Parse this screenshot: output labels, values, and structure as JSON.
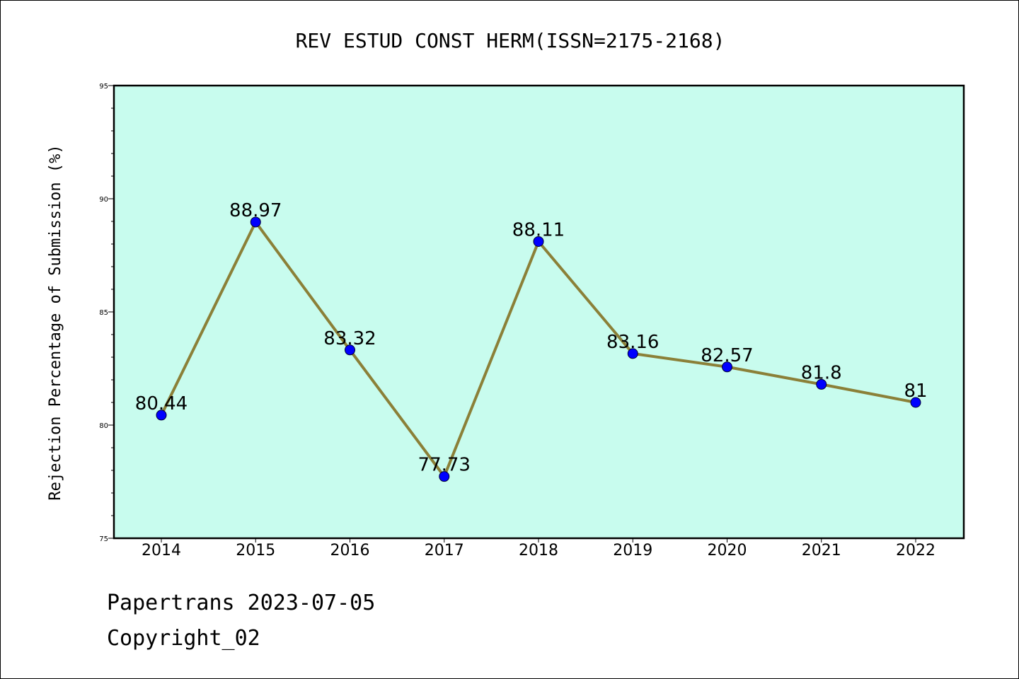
{
  "footer": {
    "line1": "Papertrans 2023-07-05",
    "line2": "Copyright_02"
  },
  "chart_data": {
    "type": "line",
    "title": "REV ESTUD CONST HERM(ISSN=2175-2168)",
    "xlabel": "",
    "ylabel": "Rejection Percentage of Submission (%)",
    "categories": [
      "2014",
      "2015",
      "2016",
      "2017",
      "2018",
      "2019",
      "2020",
      "2021",
      "2022"
    ],
    "values": [
      80.44,
      88.97,
      83.32,
      77.73,
      88.11,
      83.16,
      82.57,
      81.8,
      81
    ],
    "data_labels": [
      "80.44",
      "88.97",
      "83.32",
      "77.73",
      "88.11",
      "83.16",
      "82.57",
      "81.8",
      "81"
    ],
    "ylim": [
      75,
      95
    ],
    "yticks": [
      75,
      80,
      85,
      90,
      95
    ],
    "grid": false,
    "colors": {
      "plot_background": "#c8fcee",
      "line": "#8b8038",
      "marker": "#0000ff"
    }
  }
}
